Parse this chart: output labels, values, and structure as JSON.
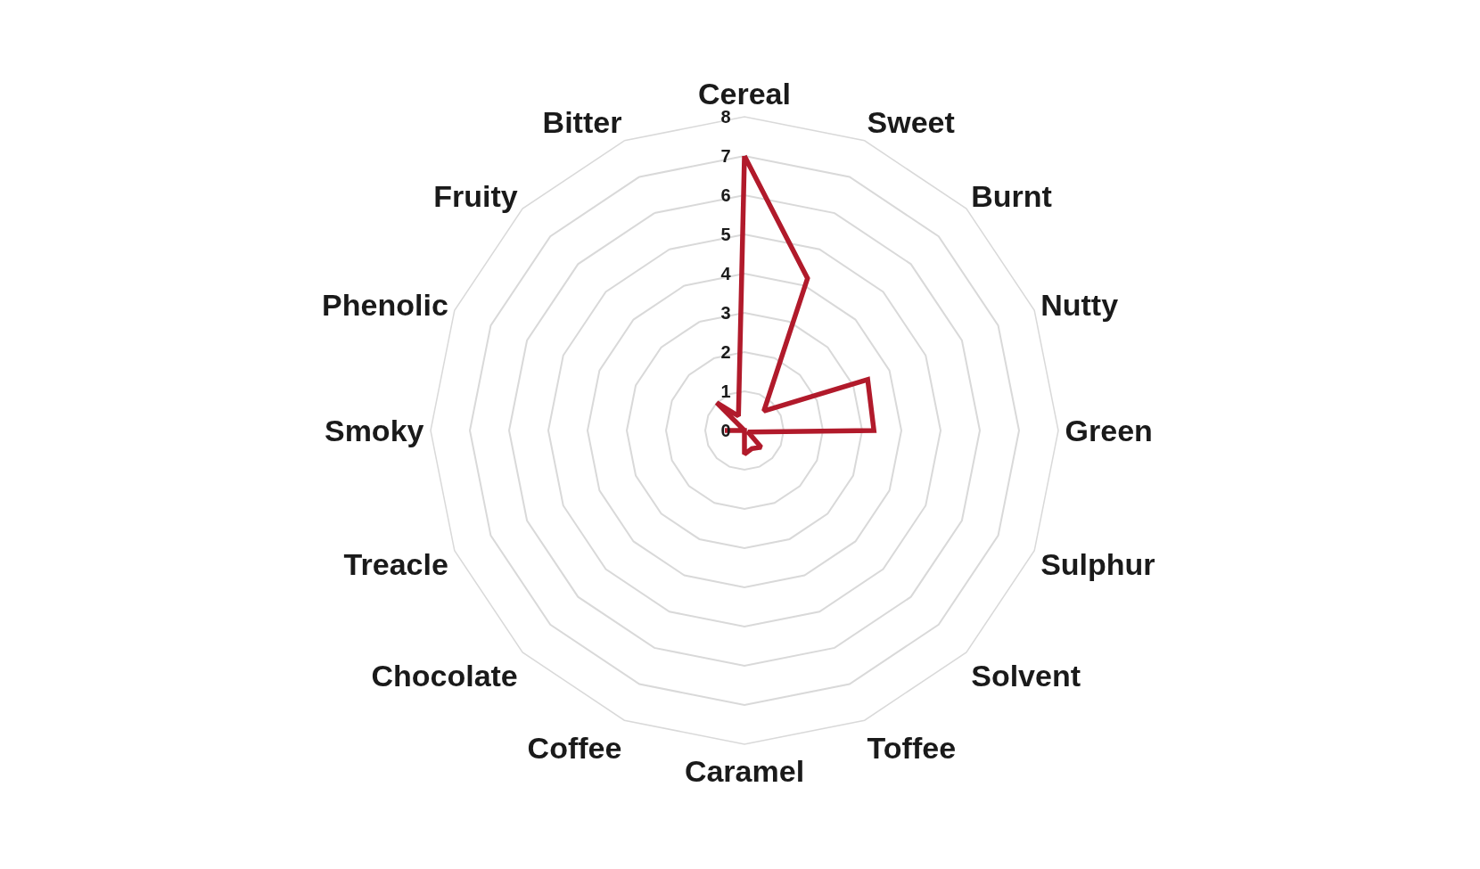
{
  "chart_data": {
    "type": "radar",
    "categories": [
      "Cereal",
      "Sweet",
      "Burnt",
      "Nutty",
      "Green",
      "Sulphur",
      "Solvent",
      "Toffee",
      "Caramel",
      "Coffee",
      "Chocolate",
      "Treacle",
      "Smoky",
      "Phenolic",
      "Fruity",
      "Bitter"
    ],
    "series": [
      {
        "color": "#b11a2b",
        "values": [
          7,
          4.2,
          0.7,
          3.4,
          3.3,
          0.1,
          0.6,
          0.5,
          0.6,
          0,
          0,
          0,
          0.5,
          0,
          1.0,
          0.4
        ]
      }
    ],
    "ylim": [
      0,
      8
    ],
    "yticks": [
      0,
      1,
      2,
      3,
      4,
      5,
      6,
      7,
      8
    ],
    "grid": "y",
    "marker": "none",
    "line_style": "solid"
  }
}
